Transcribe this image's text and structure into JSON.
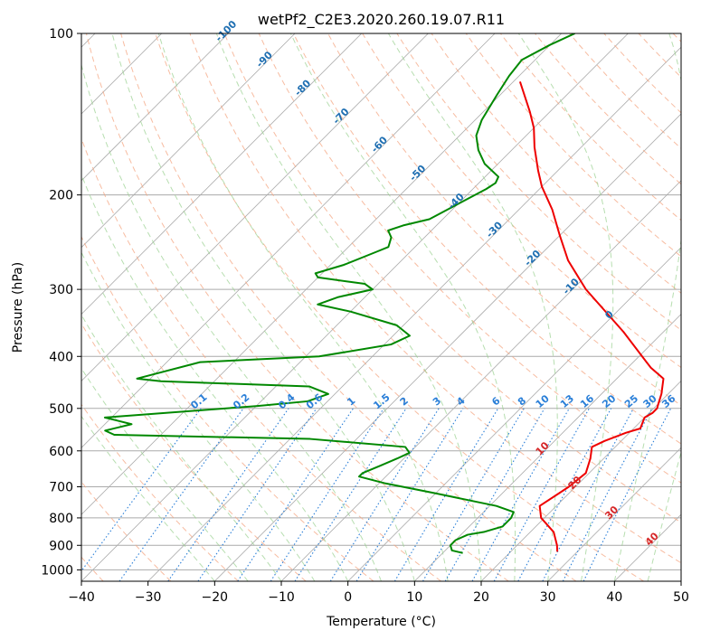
{
  "chart_data": {
    "type": "line",
    "title": "wetPf2_C2E3.2020.260.19.07.R11",
    "xlabel": "Temperature (°C)",
    "ylabel": "Pressure (hPa)",
    "xlim": [
      -40,
      50
    ],
    "ylim": [
      1050,
      100
    ],
    "x_ticks": [
      -40,
      -30,
      -20,
      -10,
      0,
      10,
      20,
      30,
      40,
      50
    ],
    "x_tick_labels": [
      "−40",
      "−30",
      "−20",
      "−10",
      "0",
      "10",
      "20",
      "30",
      "40",
      "50"
    ],
    "y_ticks": [
      100,
      200,
      300,
      400,
      500,
      600,
      700,
      800,
      900,
      1000
    ],
    "y_tick_labels": [
      "100",
      "200",
      "300",
      "400",
      "500",
      "600",
      "700",
      "800",
      "900",
      "1000"
    ],
    "grid": true,
    "series": [
      {
        "name": "temperature",
        "color": "#ee0000",
        "points": [
          [
            27.0,
            925
          ],
          [
            26.0,
            900
          ],
          [
            23.5,
            850
          ],
          [
            19.5,
            800
          ],
          [
            17.5,
            760
          ],
          [
            18.5,
            720
          ],
          [
            19.0,
            700
          ],
          [
            19.5,
            660
          ],
          [
            18.0,
            620
          ],
          [
            16.5,
            590
          ],
          [
            17.5,
            575
          ],
          [
            19.5,
            555
          ],
          [
            21.0,
            545
          ],
          [
            20.0,
            520
          ],
          [
            20.5,
            510
          ],
          [
            20.5,
            500
          ],
          [
            20.0,
            490
          ],
          [
            19.0,
            470
          ],
          [
            17.0,
            440
          ],
          [
            13.5,
            420
          ],
          [
            12.0,
            410
          ],
          [
            4.0,
            360
          ],
          [
            -8.0,
            300
          ],
          [
            -15.0,
            265
          ],
          [
            -20.0,
            238
          ],
          [
            -25.0,
            213
          ],
          [
            -30.0,
            193
          ],
          [
            -33.0,
            180
          ],
          [
            -37.0,
            163
          ],
          [
            -40.0,
            150
          ],
          [
            -43.0,
            140
          ],
          [
            -49.0,
            123
          ]
        ]
      },
      {
        "name": "dewpoint",
        "color": "#008800",
        "points": [
          [
            13.0,
            930
          ],
          [
            11.0,
            920
          ],
          [
            10.0,
            900
          ],
          [
            10.0,
            880
          ],
          [
            11.0,
            860
          ],
          [
            13.0,
            850
          ],
          [
            15.0,
            830
          ],
          [
            15.0,
            800
          ],
          [
            14.5,
            780
          ],
          [
            11.0,
            760
          ],
          [
            0.0,
            720
          ],
          [
            -9.0,
            690
          ],
          [
            -14.0,
            670
          ],
          [
            -14.0,
            660
          ],
          [
            -12.5,
            640
          ],
          [
            -11.0,
            620
          ],
          [
            -10.0,
            605
          ],
          [
            -11.5,
            590
          ],
          [
            -27.0,
            570
          ],
          [
            -57.0,
            560
          ],
          [
            -59.0,
            550
          ],
          [
            -56.0,
            535
          ],
          [
            -61.0,
            520
          ],
          [
            -40.0,
            495
          ],
          [
            -33.0,
            485
          ],
          [
            -31.0,
            470
          ],
          [
            -35.0,
            455
          ],
          [
            -58.0,
            445
          ],
          [
            -62.0,
            440
          ],
          [
            -55.0,
            410
          ],
          [
            -38.0,
            400
          ],
          [
            -29.0,
            380
          ],
          [
            -27.5,
            366
          ],
          [
            -31.0,
            350
          ],
          [
            -40.0,
            330
          ],
          [
            -46.0,
            320
          ],
          [
            -44.0,
            310
          ],
          [
            -40.0,
            300
          ],
          [
            -42.0,
            293
          ],
          [
            -50.0,
            285
          ],
          [
            -51.0,
            280
          ],
          [
            -48.0,
            270
          ],
          [
            -45.0,
            255
          ],
          [
            -44.0,
            250
          ],
          [
            -45.0,
            240
          ],
          [
            -46.5,
            233
          ],
          [
            -45.0,
            228
          ],
          [
            -42.0,
            222
          ],
          [
            -38.0,
            195
          ],
          [
            -37.5,
            190
          ],
          [
            -38.0,
            185
          ],
          [
            -42.0,
            175
          ],
          [
            -45.0,
            165
          ],
          [
            -47.5,
            155
          ],
          [
            -49.0,
            145
          ],
          [
            -50.5,
            130
          ],
          [
            -51.5,
            120
          ],
          [
            -52.0,
            112
          ],
          [
            -50.0,
            105
          ],
          [
            -48.0,
            100
          ]
        ]
      }
    ],
    "dry_adiabat_labels": [
      "-100",
      "-90",
      "-80",
      "-70",
      "-60",
      "-50",
      "-40",
      "-30",
      "-20",
      "-10",
      "0",
      "10",
      "20",
      "30",
      "40"
    ],
    "mixing_ratio_labels": [
      "0.1",
      "0.2",
      "0.4",
      "0.6",
      "1",
      "1.5",
      "2",
      "3",
      "4",
      "6",
      "8",
      "10",
      "13",
      "16",
      "20",
      "25",
      "30",
      "36"
    ],
    "colors": {
      "dry_adiabat_label": "#1f6fb2",
      "moist_label": "#d62728",
      "mixing_ratio": "#2a7fd8",
      "dry_adiabat_line": "#f4a582",
      "moist_adiabat_line": "#98d08e",
      "isotherm": "#aaaaaa"
    }
  }
}
